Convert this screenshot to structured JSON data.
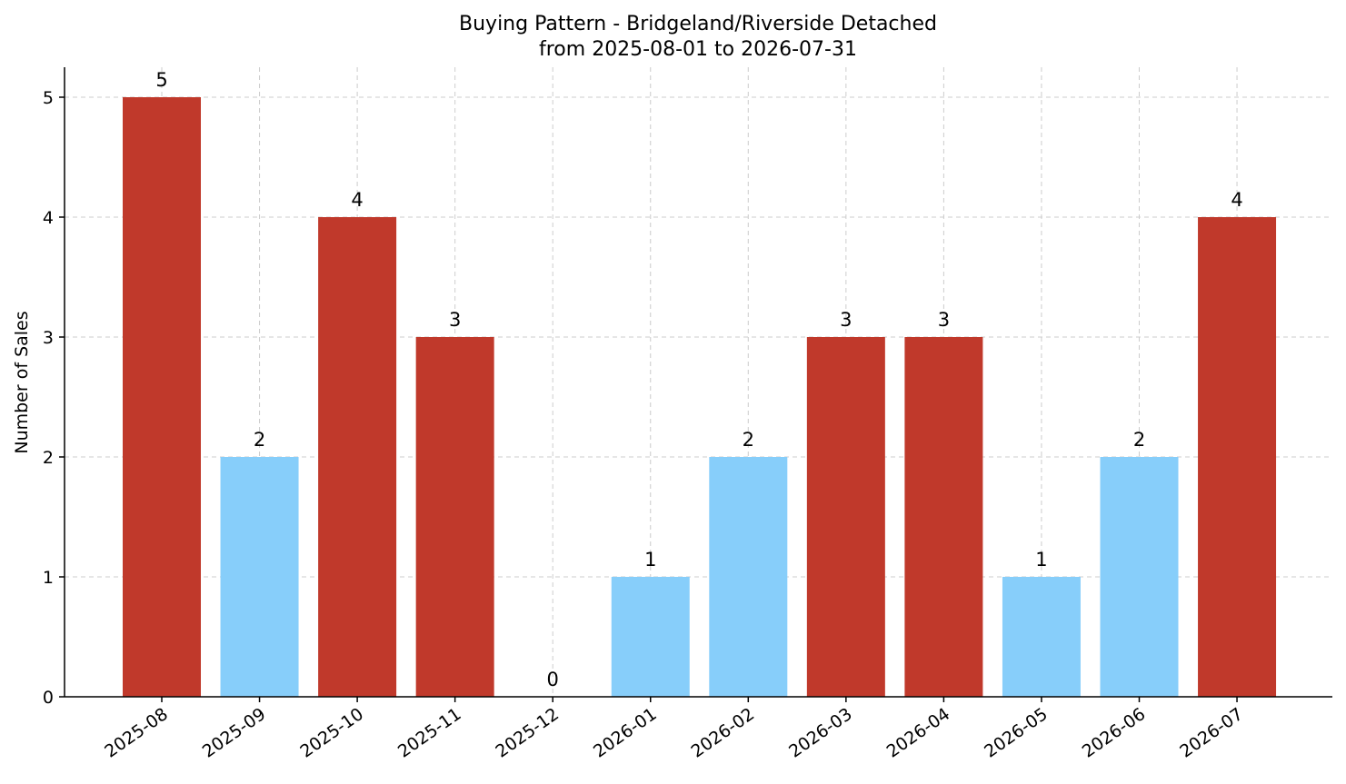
{
  "chart_data": {
    "type": "bar",
    "title": "Buying Pattern - Bridgeland/Riverside Detached",
    "subtitle": "from 2025-08-01 to 2026-07-31",
    "xlabel": "",
    "ylabel": "Number of Sales",
    "categories": [
      "2025-08",
      "2025-09",
      "2025-10",
      "2025-11",
      "2025-12",
      "2026-01",
      "2026-02",
      "2026-03",
      "2026-04",
      "2026-05",
      "2026-06",
      "2026-07"
    ],
    "values": [
      5,
      2,
      4,
      3,
      0,
      1,
      2,
      3,
      3,
      1,
      2,
      4
    ],
    "ylim": [
      0,
      5.25
    ],
    "yticks": [
      0,
      1,
      2,
      3,
      4,
      5
    ],
    "grid": true,
    "colors": {
      "high": "#c0392b",
      "low": "#87cefa"
    },
    "bar_colors": [
      "high",
      "low",
      "high",
      "high",
      "low",
      "low",
      "low",
      "high",
      "high",
      "low",
      "low",
      "high"
    ]
  }
}
